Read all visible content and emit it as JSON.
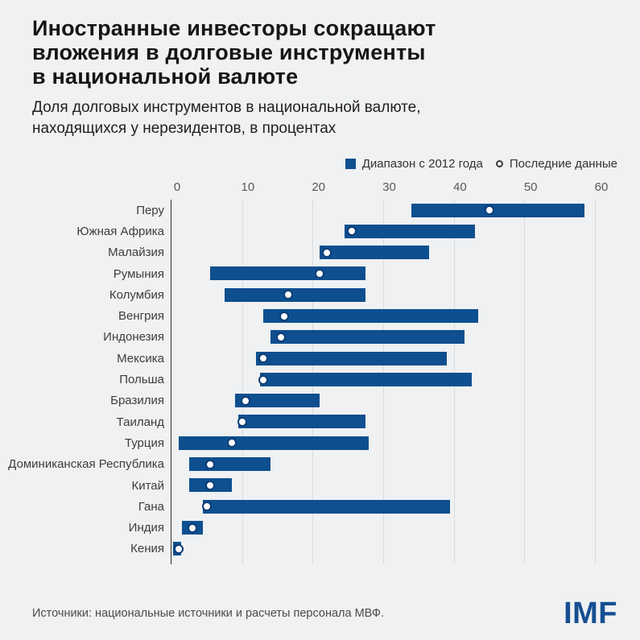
{
  "header": {
    "title": "Иностранные инвесторы сокращают\nвложения в долговые инструменты\nв национальной валюте",
    "subtitle": "Доля долговых инструментов в национальной валюте,\nнаходящихся у нерезидентов, в процентах"
  },
  "legend": {
    "range_label": "Диапазон с 2012 года",
    "latest_label": "Последние данные"
  },
  "chart_data": {
    "type": "bar",
    "subtype": "horizontal-range-bar-with-dot",
    "xlabel": "",
    "ylabel": "",
    "xlim": [
      0,
      60
    ],
    "x_ticks": [
      0,
      10,
      20,
      30,
      40,
      50,
      60
    ],
    "grid": "vertical-light",
    "series": [
      {
        "name": "Диапазон с 2012 года",
        "marker": "bar"
      },
      {
        "name": "Последние данные",
        "marker": "open-circle"
      }
    ],
    "rows": [
      {
        "label": "Перу",
        "range_min": 34,
        "range_max": 58.5,
        "latest": 45
      },
      {
        "label": "Южная Африка",
        "range_min": 24.5,
        "range_max": 43,
        "latest": 25.5
      },
      {
        "label": "Малайзия",
        "range_min": 21,
        "range_max": 36.5,
        "latest": 22
      },
      {
        "label": "Румыния",
        "range_min": 5.5,
        "range_max": 27.5,
        "latest": 21
      },
      {
        "label": "Колумбия",
        "range_min": 7.5,
        "range_max": 27.5,
        "latest": 16.5
      },
      {
        "label": "Венгрия",
        "range_min": 13,
        "range_max": 43.5,
        "latest": 16
      },
      {
        "label": "Индонезия",
        "range_min": 14,
        "range_max": 41.5,
        "latest": 15.5
      },
      {
        "label": "Мексика",
        "range_min": 12,
        "range_max": 39,
        "latest": 13
      },
      {
        "label": "Польша",
        "range_min": 12.5,
        "range_max": 42.5,
        "latest": 13
      },
      {
        "label": "Бразилия",
        "range_min": 9,
        "range_max": 21,
        "latest": 10.5
      },
      {
        "label": "Таиланд",
        "range_min": 9.5,
        "range_max": 27.5,
        "latest": 10
      },
      {
        "label": "Турция",
        "range_min": 1,
        "range_max": 28,
        "latest": 8.5
      },
      {
        "label": "Доминиканская Республика",
        "range_min": 2.5,
        "range_max": 14,
        "latest": 5.5
      },
      {
        "label": "Китай",
        "range_min": 2.5,
        "range_max": 8.5,
        "latest": 5.5
      },
      {
        "label": "Гана",
        "range_min": 4.5,
        "range_max": 39.5,
        "latest": 5
      },
      {
        "label": "Индия",
        "range_min": 1.5,
        "range_max": 4.5,
        "latest": 3
      },
      {
        "label": "Кения",
        "range_min": 0.2,
        "range_max": 1.4,
        "latest": 1
      }
    ]
  },
  "colors": {
    "background": "#eff1f2",
    "bar": "#0e4f8f",
    "dot_ring": "#0c3d75",
    "gridline": "#d9dadc",
    "axis_line": "#2f2f2f",
    "logo_blue": "#164e92"
  },
  "footer": {
    "source": "Источники: национальные источники и расчеты персонала МВФ.",
    "logo": "IMF"
  }
}
